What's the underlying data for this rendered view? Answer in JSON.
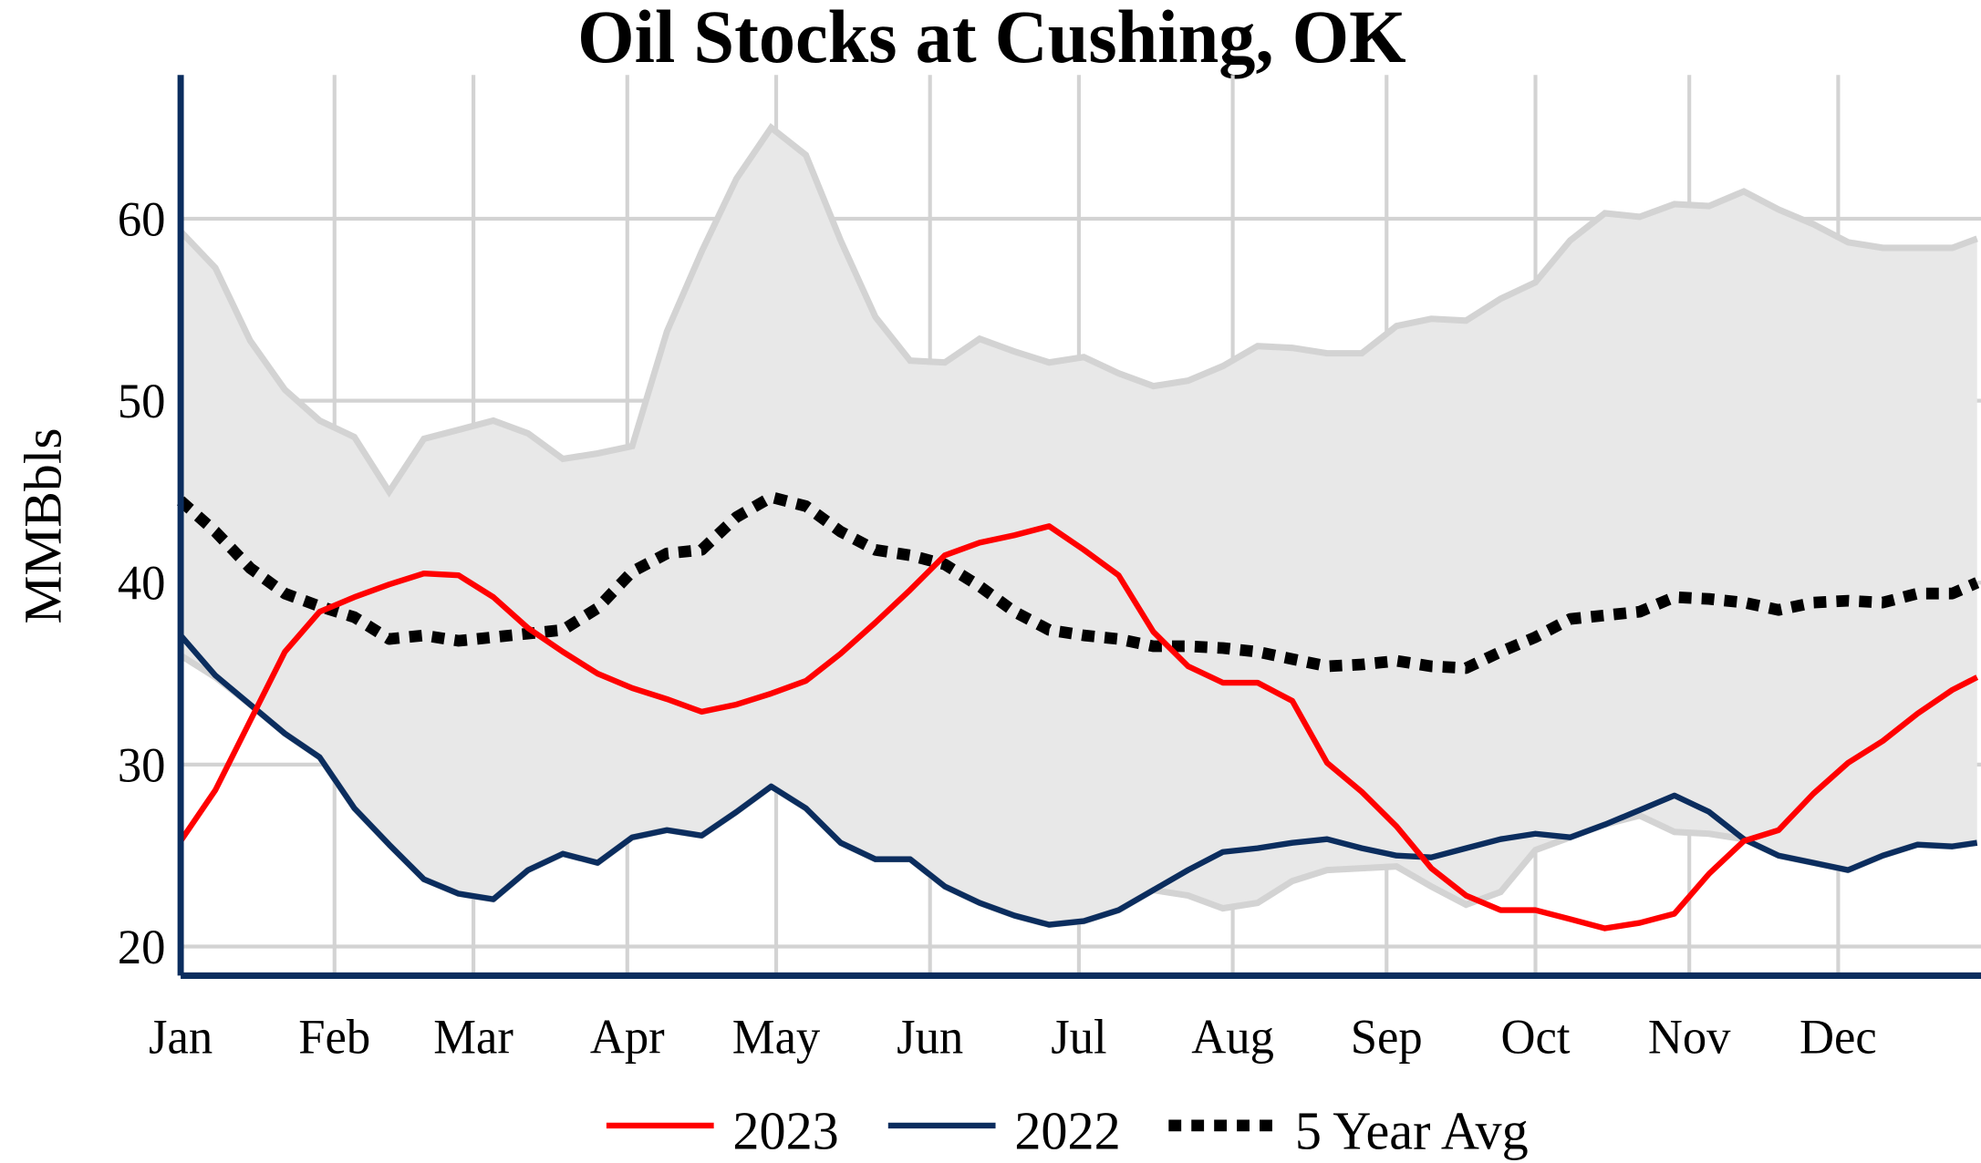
{
  "chart_data": {
    "type": "line",
    "title": "Oil Stocks at Cushing, OK",
    "xlabel": "",
    "ylabel": "MMBbls",
    "ylim": [
      18.4,
      67.9
    ],
    "yticks": [
      20,
      30,
      40,
      50,
      60
    ],
    "xticks": [
      {
        "label": "Jan",
        "date": "01-01"
      },
      {
        "label": "Feb",
        "date": "02-01"
      },
      {
        "label": "Mar",
        "date": "03-01"
      },
      {
        "label": "Apr",
        "date": "04-01"
      },
      {
        "label": "May",
        "date": "05-01"
      },
      {
        "label": "Jun",
        "date": "06-01"
      },
      {
        "label": "Jul",
        "date": "07-01"
      },
      {
        "label": "Aug",
        "date": "08-01"
      },
      {
        "label": "Sep",
        "date": "09-01"
      },
      {
        "label": "Oct",
        "date": "10-01"
      },
      {
        "label": "Nov",
        "date": "11-01"
      },
      {
        "label": "Dec",
        "date": "12-01"
      }
    ],
    "grid": true,
    "legend_position": "bottom",
    "x": [
      "01-01",
      "01-08",
      "01-15",
      "01-22",
      "01-29",
      "02-05",
      "02-12",
      "02-19",
      "02-26",
      "03-05",
      "03-12",
      "03-19",
      "03-26",
      "04-02",
      "04-09",
      "04-16",
      "04-23",
      "04-30",
      "05-07",
      "05-14",
      "05-21",
      "05-28",
      "06-04",
      "06-11",
      "06-18",
      "06-25",
      "07-02",
      "07-09",
      "07-16",
      "07-23",
      "07-30",
      "08-06",
      "08-13",
      "08-20",
      "08-27",
      "09-03",
      "09-10",
      "09-17",
      "09-24",
      "10-01",
      "10-08",
      "10-15",
      "10-22",
      "10-29",
      "11-05",
      "11-12",
      "11-19",
      "11-26",
      "12-03",
      "12-10",
      "12-17",
      "12-24",
      "12-29"
    ],
    "range_band": {
      "color": "#e8e8e8",
      "edge_color": "#d3d3d3",
      "upper": [
        59.3,
        57.3,
        53.3,
        50.6,
        48.9,
        48.0,
        45.0,
        47.9,
        48.4,
        48.9,
        48.2,
        46.8,
        47.1,
        47.5,
        53.8,
        58.2,
        62.2,
        65.0,
        63.5,
        58.8,
        54.6,
        52.2,
        52.1,
        53.4,
        52.7,
        52.1,
        52.4,
        51.5,
        50.8,
        51.1,
        51.9,
        53.0,
        52.9,
        52.6,
        52.6,
        54.1,
        54.5,
        54.4,
        55.6,
        56.5,
        58.8,
        60.3,
        60.1,
        60.8,
        60.7,
        61.5,
        60.5,
        59.7,
        58.7,
        58.4,
        58.4,
        58.4,
        58.9
      ],
      "lower": [
        36.0,
        34.8,
        33.3,
        31.7,
        30.4,
        27.6,
        25.6,
        23.7,
        22.9,
        22.6,
        24.2,
        25.1,
        24.6,
        26.0,
        26.4,
        26.1,
        27.4,
        28.8,
        27.6,
        25.7,
        24.8,
        24.8,
        23.3,
        22.4,
        21.7,
        21.2,
        21.4,
        22.0,
        23.1,
        22.8,
        22.1,
        22.4,
        23.6,
        24.2,
        24.3,
        24.4,
        23.3,
        22.3,
        23.0,
        25.3,
        26.0,
        26.7,
        27.2,
        26.3,
        26.2,
        25.9,
        25.0,
        24.6,
        24.2,
        25.0,
        25.6,
        25.5,
        25.7
      ]
    },
    "series": [
      {
        "name": "2023",
        "color": "#ff0000",
        "style": "solid",
        "values": [
          25.8,
          28.6,
          32.4,
          36.2,
          38.4,
          39.2,
          39.9,
          40.5,
          40.4,
          39.2,
          37.5,
          36.2,
          35.0,
          34.2,
          33.6,
          32.9,
          33.3,
          33.9,
          34.6,
          36.1,
          37.8,
          39.6,
          41.5,
          42.2,
          42.6,
          43.1,
          41.8,
          40.4,
          37.3,
          35.4,
          34.5,
          34.5,
          33.5,
          30.1,
          28.5,
          26.6,
          24.3,
          22.8,
          22.0,
          22.0,
          21.5,
          21.0,
          21.3,
          21.8,
          24.0,
          25.8,
          26.4,
          28.4,
          30.1,
          31.3,
          32.8,
          34.1,
          34.8
        ]
      },
      {
        "name": "2022",
        "color": "#0b2d5e",
        "style": "solid",
        "values": [
          37.1,
          34.9,
          33.3,
          31.7,
          30.4,
          27.6,
          25.6,
          23.7,
          22.9,
          22.6,
          24.2,
          25.1,
          24.6,
          26.0,
          26.4,
          26.1,
          27.4,
          28.8,
          27.6,
          25.7,
          24.8,
          24.8,
          23.3,
          22.4,
          21.7,
          21.2,
          21.4,
          22.0,
          23.1,
          24.2,
          25.2,
          25.4,
          25.7,
          25.9,
          25.4,
          25.0,
          24.9,
          25.4,
          25.9,
          26.2,
          26.0,
          26.7,
          27.5,
          28.3,
          27.4,
          25.9,
          25.0,
          24.6,
          24.2,
          25.0,
          25.6,
          25.5,
          25.7
        ]
      },
      {
        "name": "5 Year Avg",
        "color": "#000000",
        "style": "dotted",
        "values": [
          44.5,
          42.8,
          40.8,
          39.4,
          38.7,
          38.1,
          36.9,
          37.1,
          36.8,
          37.0,
          37.2,
          37.4,
          38.6,
          40.6,
          41.6,
          41.8,
          43.6,
          44.7,
          44.2,
          42.8,
          41.8,
          41.5,
          41.0,
          39.8,
          38.4,
          37.4,
          37.1,
          36.9,
          36.5,
          36.5,
          36.4,
          36.2,
          35.8,
          35.4,
          35.5,
          35.7,
          35.4,
          35.3,
          36.2,
          37.0,
          38.0,
          38.2,
          38.4,
          39.2,
          39.1,
          38.9,
          38.5,
          38.9,
          39.0,
          38.9,
          39.4,
          39.4,
          40.0
        ]
      }
    ],
    "axis_color": "#0b2d5e",
    "grid_color": "#d3d3d3"
  }
}
